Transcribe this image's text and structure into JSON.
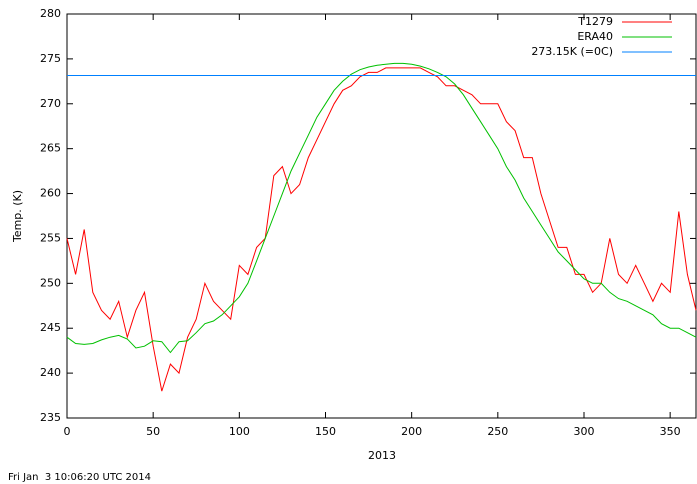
{
  "chart_data": {
    "type": "line",
    "xlabel": "2013",
    "ylabel": "Temp. (K)",
    "footer": "Fri Jan  3 10:06:20 UTC 2014",
    "x": [
      0,
      5,
      10,
      15,
      20,
      25,
      30,
      35,
      40,
      45,
      50,
      55,
      60,
      65,
      70,
      75,
      80,
      85,
      90,
      95,
      100,
      105,
      110,
      115,
      120,
      125,
      130,
      135,
      140,
      145,
      150,
      155,
      160,
      165,
      170,
      175,
      180,
      185,
      190,
      195,
      200,
      205,
      210,
      215,
      220,
      225,
      230,
      235,
      240,
      245,
      250,
      255,
      260,
      265,
      270,
      275,
      280,
      285,
      290,
      295,
      300,
      305,
      310,
      315,
      320,
      325,
      330,
      335,
      340,
      345,
      350,
      355,
      360,
      365
    ],
    "series": [
      {
        "name": "T1279",
        "color": "#ff0000",
        "values": [
          255,
          251,
          256,
          249,
          247,
          246,
          248,
          244,
          247,
          249,
          243,
          238,
          241,
          240,
          244,
          246,
          250,
          248,
          247,
          246,
          252,
          251,
          254,
          255,
          262,
          263,
          260,
          261,
          264,
          266,
          268,
          270,
          271.5,
          272,
          273,
          273.5,
          273.5,
          274,
          274,
          274,
          274,
          274,
          273.5,
          273,
          272,
          272,
          271.5,
          271,
          270,
          270,
          270,
          268,
          267,
          264,
          264,
          260,
          257,
          254,
          254,
          251,
          251,
          249,
          250,
          255,
          251,
          250,
          252,
          250,
          248,
          250,
          249,
          258,
          251,
          247
        ]
      },
      {
        "name": "ERA40",
        "color": "#00c000",
        "values": [
          244,
          243.3,
          243.2,
          243.3,
          243.7,
          244,
          244.2,
          243.8,
          242.8,
          243,
          243.6,
          243.5,
          242.3,
          243.5,
          243.6,
          244.5,
          245.5,
          245.8,
          246.5,
          247.5,
          248.5,
          250,
          252.5,
          255,
          257.5,
          260,
          262.5,
          264.5,
          266.5,
          268.5,
          270,
          271.5,
          272.5,
          273.3,
          273.8,
          274.1,
          274.3,
          274.4,
          274.5,
          274.5,
          274.4,
          274.2,
          273.9,
          273.5,
          273,
          272.2,
          271,
          269.5,
          268,
          266.5,
          265,
          263,
          261.5,
          259.5,
          258,
          256.5,
          255,
          253.5,
          252.5,
          251.5,
          250.5,
          250,
          250,
          249,
          248.3,
          248,
          247.5,
          247,
          246.5,
          245.5,
          245,
          245,
          244.5,
          244
        ]
      },
      {
        "name": "273.15K (=0C)",
        "color": "#0080ff",
        "x": [
          0,
          365
        ],
        "values": [
          273.15,
          273.15
        ]
      }
    ],
    "xlim": [
      0,
      365
    ],
    "xticks": [
      0,
      50,
      100,
      150,
      200,
      250,
      300,
      350
    ],
    "ylim": [
      235,
      280
    ],
    "yticks": [
      235,
      240,
      245,
      250,
      255,
      260,
      265,
      270,
      275,
      280
    ]
  }
}
